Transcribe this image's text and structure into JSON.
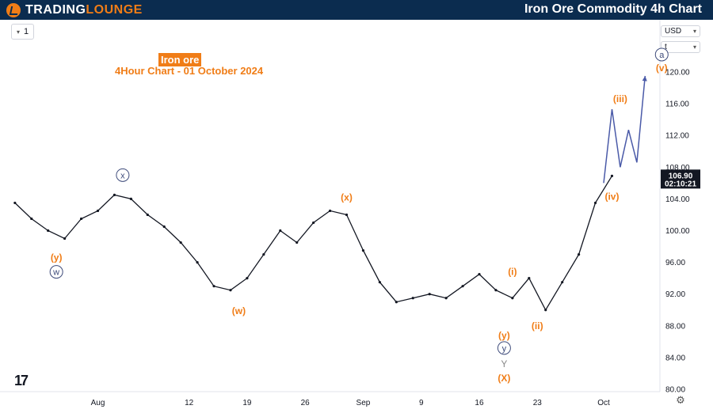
{
  "header": {
    "brand_part1": "TRADING",
    "brand_part2": "LOUNGE",
    "page_title": "Iron Ore Commodity 4h Chart"
  },
  "toolbar": {
    "interval": "1",
    "currency": "USD",
    "unit": "t"
  },
  "footer": {
    "tradingview_logo": "17"
  },
  "colors": {
    "brand_bg": "#0b2c4f",
    "accent_orange": "#f07d17",
    "candle": "#131722",
    "projection": "#4a5aa8"
  },
  "chart_data": {
    "type": "line",
    "title": "Iron ore",
    "subtitle": "4Hour Chart - 01 October 2024",
    "ylim": [
      79.5,
      124.5
    ],
    "y_ticks": [
      "80.00",
      "84.00",
      "88.00",
      "92.00",
      "96.00",
      "100.00",
      "104.00",
      "108.00",
      "112.00",
      "116.00",
      "120.00"
    ],
    "x_ticks": [
      "Aug",
      "12",
      "19",
      "26",
      "Sep",
      "9",
      "16",
      "23",
      "Oct"
    ],
    "x_dates": [
      "2024-08-01",
      "2024-08-12",
      "2024-08-19",
      "2024-08-26",
      "2024-09-02",
      "2024-09-09",
      "2024-09-16",
      "2024-09-23",
      "2024-10-01"
    ],
    "last_price": {
      "value": "106.90",
      "countdown": "02:10:21"
    },
    "series": [
      {
        "x": [
          "2024-07-22",
          "2024-07-24",
          "2024-07-26",
          "2024-07-28",
          "2024-07-30",
          "2024-08-01",
          "2024-08-03",
          "2024-08-05",
          "2024-08-07",
          "2024-08-09",
          "2024-08-11",
          "2024-08-13",
          "2024-08-15",
          "2024-08-17",
          "2024-08-19",
          "2024-08-21",
          "2024-08-23",
          "2024-08-25",
          "2024-08-27",
          "2024-08-29",
          "2024-08-31",
          "2024-09-02",
          "2024-09-04",
          "2024-09-06",
          "2024-09-08",
          "2024-09-10",
          "2024-09-12",
          "2024-09-14",
          "2024-09-16",
          "2024-09-18",
          "2024-09-20",
          "2024-09-22",
          "2024-09-24",
          "2024-09-26",
          "2024-09-28",
          "2024-09-30",
          "2024-10-02"
        ],
        "values": [
          103.5,
          101.5,
          100.0,
          99.0,
          101.5,
          102.5,
          104.5,
          104.0,
          102.0,
          100.5,
          98.5,
          96.0,
          93.0,
          92.5,
          94.0,
          97.0,
          100.0,
          98.5,
          101.0,
          102.5,
          102.0,
          97.5,
          93.5,
          91.0,
          91.5,
          92.0,
          91.5,
          93.0,
          94.5,
          92.5,
          91.5,
          94.0,
          90.0,
          93.5,
          97.0,
          103.5,
          106.9
        ]
      }
    ],
    "projection": {
      "x": [
        "2024-10-01",
        "2024-10-02",
        "2024-10-03",
        "2024-10-04",
        "2024-10-05",
        "2024-10-06"
      ],
      "values": [
        106.0,
        115.3,
        108.0,
        112.7,
        108.6,
        119.5
      ]
    },
    "wave_labels": [
      {
        "text": "x",
        "style": "circle-blue",
        "x": "2024-08-04",
        "value": 107.0
      },
      {
        "text": "(y)",
        "style": "orange",
        "x": "2024-07-27",
        "value": 96.6
      },
      {
        "text": "w",
        "style": "circle-blue",
        "x": "2024-07-27",
        "value": 94.8
      },
      {
        "text": "(w)",
        "style": "orange",
        "x": "2024-08-18",
        "value": 89.9
      },
      {
        "text": "(x)",
        "style": "orange",
        "x": "2024-08-31",
        "value": 104.2
      },
      {
        "text": "(i)",
        "style": "orange",
        "x": "2024-09-20",
        "value": 94.8
      },
      {
        "text": "(ii)",
        "style": "orange",
        "x": "2024-09-23",
        "value": 88.0
      },
      {
        "text": "(y)",
        "style": "orange",
        "x": "2024-09-19",
        "value": 86.8
      },
      {
        "text": "y",
        "style": "circle-blue",
        "x": "2024-09-19",
        "value": 85.2
      },
      {
        "text": "Y",
        "style": "gray",
        "x": "2024-09-19",
        "value": 83.2
      },
      {
        "text": "(X)",
        "style": "orange",
        "x": "2024-09-19",
        "value": 81.4
      },
      {
        "text": "(iii)",
        "style": "orange",
        "x": "2024-10-03",
        "value": 116.6
      },
      {
        "text": "(iv)",
        "style": "orange",
        "x": "2024-10-02",
        "value": 104.3
      },
      {
        "text": "(v)",
        "style": "orange",
        "x": "2024-10-08",
        "value": 120.5
      },
      {
        "text": "a",
        "style": "circle-blue",
        "x": "2024-10-08",
        "value": 122.2
      }
    ]
  }
}
